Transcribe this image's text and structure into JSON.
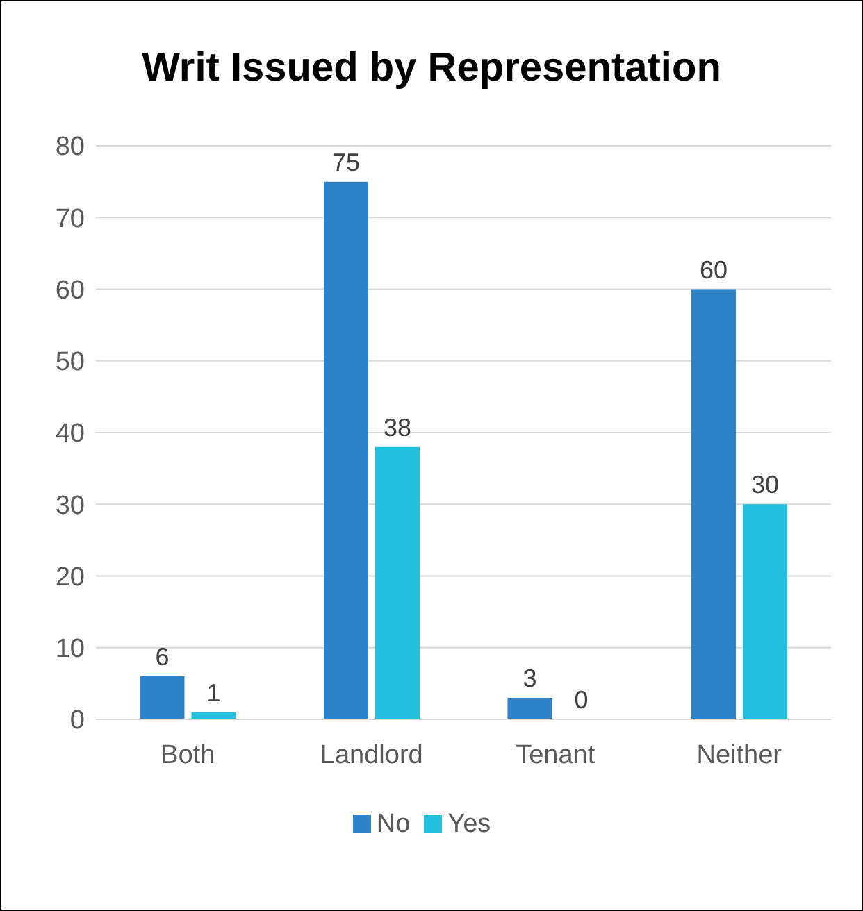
{
  "chart_data": {
    "type": "bar",
    "title": "Writ Issued by Representation",
    "categories": [
      "Both",
      "Landlord",
      "Tenant",
      "Neither"
    ],
    "series": [
      {
        "name": "No",
        "color": "#2e83c8",
        "values": [
          6,
          75,
          3,
          60
        ]
      },
      {
        "name": "Yes",
        "color": "#22bfdf",
        "values": [
          1,
          38,
          0,
          30
        ]
      }
    ],
    "ylim": [
      0,
      80
    ],
    "yticks": [
      0,
      10,
      20,
      30,
      40,
      50,
      60,
      70,
      80
    ],
    "grid": "y",
    "legend": "bottom",
    "data_labels": true
  }
}
